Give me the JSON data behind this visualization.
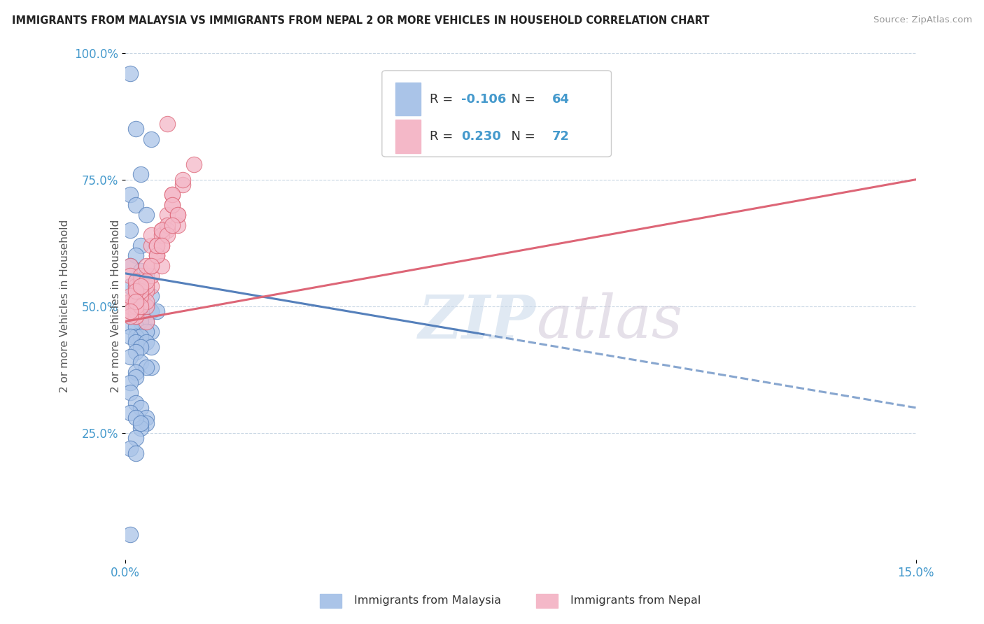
{
  "title": "IMMIGRANTS FROM MALAYSIA VS IMMIGRANTS FROM NEPAL 2 OR MORE VEHICLES IN HOUSEHOLD CORRELATION CHART",
  "source": "Source: ZipAtlas.com",
  "ylabel": "2 or more Vehicles in Household",
  "xlim": [
    0.0,
    0.15
  ],
  "ylim": [
    0.0,
    1.0
  ],
  "legend_label1": "Immigrants from Malaysia",
  "legend_label2": "Immigrants from Nepal",
  "R1": -0.106,
  "N1": 64,
  "R2": 0.23,
  "N2": 72,
  "color_malaysia": "#aac4e8",
  "color_nepal": "#f4b8c8",
  "color_malaysia_line": "#5580bb",
  "color_nepal_line": "#dd6677",
  "watermark_zip": "ZIP",
  "watermark_atlas": "atlas",
  "malaysia_x": [
    0.001,
    0.002,
    0.005,
    0.003,
    0.001,
    0.002,
    0.004,
    0.001,
    0.003,
    0.002,
    0.001,
    0.003,
    0.004,
    0.002,
    0.001,
    0.002,
    0.003,
    0.005,
    0.002,
    0.001,
    0.003,
    0.002,
    0.004,
    0.003,
    0.001,
    0.002,
    0.005,
    0.006,
    0.003,
    0.002,
    0.004,
    0.003,
    0.001,
    0.002,
    0.005,
    0.004,
    0.002,
    0.003,
    0.001,
    0.002,
    0.004,
    0.005,
    0.003,
    0.002,
    0.001,
    0.003,
    0.005,
    0.004,
    0.002,
    0.002,
    0.001,
    0.001,
    0.002,
    0.003,
    0.001,
    0.004,
    0.004,
    0.003,
    0.002,
    0.001,
    0.002,
    0.003,
    0.001,
    0.002
  ],
  "malaysia_y": [
    0.96,
    0.85,
    0.83,
    0.76,
    0.72,
    0.7,
    0.68,
    0.65,
    0.62,
    0.6,
    0.58,
    0.57,
    0.56,
    0.55,
    0.54,
    0.54,
    0.53,
    0.52,
    0.52,
    0.51,
    0.51,
    0.5,
    0.5,
    0.5,
    0.5,
    0.49,
    0.49,
    0.49,
    0.48,
    0.48,
    0.47,
    0.47,
    0.46,
    0.46,
    0.45,
    0.45,
    0.44,
    0.44,
    0.44,
    0.43,
    0.43,
    0.42,
    0.42,
    0.41,
    0.4,
    0.39,
    0.38,
    0.38,
    0.37,
    0.36,
    0.35,
    0.33,
    0.31,
    0.3,
    0.29,
    0.28,
    0.27,
    0.26,
    0.24,
    0.22,
    0.28,
    0.27,
    0.05,
    0.21
  ],
  "nepal_x": [
    0.001,
    0.002,
    0.003,
    0.004,
    0.005,
    0.001,
    0.002,
    0.003,
    0.004,
    0.001,
    0.002,
    0.003,
    0.001,
    0.002,
    0.003,
    0.004,
    0.001,
    0.002,
    0.003,
    0.002,
    0.001,
    0.003,
    0.004,
    0.002,
    0.003,
    0.002,
    0.003,
    0.001,
    0.002,
    0.004,
    0.003,
    0.002,
    0.005,
    0.003,
    0.001,
    0.004,
    0.005,
    0.002,
    0.003,
    0.002,
    0.001,
    0.006,
    0.004,
    0.005,
    0.007,
    0.006,
    0.008,
    0.005,
    0.009,
    0.007,
    0.006,
    0.008,
    0.01,
    0.007,
    0.009,
    0.011,
    0.008,
    0.006,
    0.01,
    0.007,
    0.005,
    0.009,
    0.008,
    0.006,
    0.007,
    0.011,
    0.009,
    0.008,
    0.01,
    0.007,
    0.013,
    0.009
  ],
  "nepal_y": [
    0.58,
    0.52,
    0.55,
    0.5,
    0.54,
    0.51,
    0.48,
    0.53,
    0.47,
    0.56,
    0.5,
    0.52,
    0.49,
    0.54,
    0.51,
    0.53,
    0.5,
    0.48,
    0.55,
    0.52,
    0.5,
    0.53,
    0.51,
    0.49,
    0.56,
    0.5,
    0.52,
    0.48,
    0.55,
    0.54,
    0.53,
    0.51,
    0.56,
    0.5,
    0.52,
    0.55,
    0.58,
    0.53,
    0.54,
    0.51,
    0.49,
    0.6,
    0.58,
    0.62,
    0.65,
    0.6,
    0.68,
    0.64,
    0.72,
    0.58,
    0.62,
    0.86,
    0.66,
    0.62,
    0.7,
    0.74,
    0.65,
    0.6,
    0.68,
    0.64,
    0.58,
    0.72,
    0.66,
    0.62,
    0.65,
    0.75,
    0.7,
    0.64,
    0.68,
    0.62,
    0.78,
    0.66
  ],
  "trend_malaysia_x0": 0.0,
  "trend_malaysia_y0": 0.565,
  "trend_malaysia_x1": 0.15,
  "trend_malaysia_y1": 0.3,
  "trend_nepal_x0": 0.0,
  "trend_nepal_y0": 0.47,
  "trend_nepal_x1": 0.15,
  "trend_nepal_y1": 0.75
}
